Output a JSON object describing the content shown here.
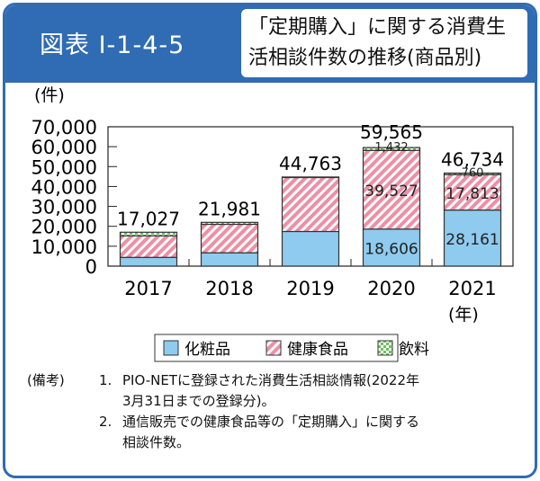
{
  "header": {
    "figure_id": "図表 I-1-4-5",
    "title_line1": "「定期購入」に関する消費生",
    "title_line2": "活相談件数の推移(商品別)"
  },
  "colors": {
    "cosmetics": "#8ecbef",
    "health_food": "#ee8fa5",
    "drinks": "#9fd88f",
    "header": "#2f6cb3"
  },
  "chart_data": {
    "type": "bar",
    "stacked": true,
    "unit_label": "(件)",
    "xlabel_unit": "(年)",
    "categories": [
      "2017",
      "2018",
      "2019",
      "2020",
      "2021"
    ],
    "ylim": [
      0,
      70000
    ],
    "yticks": [
      "0",
      "10,000",
      "20,000",
      "30,000",
      "40,000",
      "50,000",
      "60,000",
      "70,000"
    ],
    "series": [
      {
        "name": "化粧品",
        "values": [
          4400,
          6700,
          17400,
          18606,
          28161
        ],
        "labels": [
          "",
          "",
          "",
          "18,606",
          "28,161"
        ]
      },
      {
        "name": "健康食品",
        "values": [
          10800,
          14300,
          27100,
          39527,
          17813
        ],
        "labels": [
          "",
          "",
          "",
          "39,527",
          "17,813"
        ]
      },
      {
        "name": "飲料",
        "values": [
          1827,
          981,
          263,
          1432,
          760
        ],
        "labels": [
          "",
          "",
          "",
          "1,432",
          "760"
        ]
      }
    ],
    "totals": [
      "17,027",
      "21,981",
      "44,763",
      "59,565",
      "46,734"
    ],
    "legend_position": "bottom"
  },
  "notes": {
    "label": "(備考)",
    "items": [
      {
        "num": "1.",
        "lines": [
          "PIO-NETに登録された消費生活相談情報(2022年",
          "3月31日までの登録分)。"
        ]
      },
      {
        "num": "2.",
        "lines": [
          "通信販売での健康食品等の「定期購入」に関する",
          "相談件数。"
        ]
      }
    ]
  }
}
